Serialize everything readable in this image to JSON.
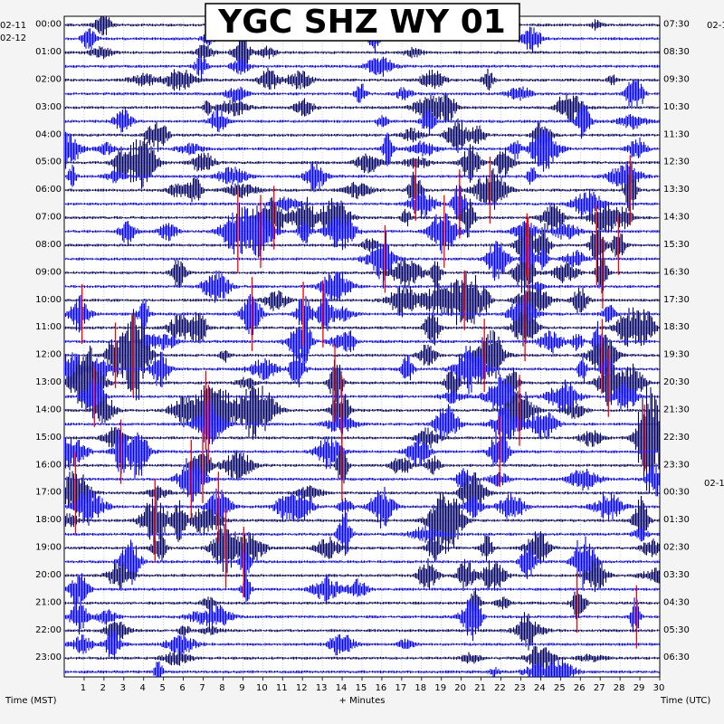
{
  "chart_data": {
    "type": "line",
    "title": "YGC SHZ WY 01",
    "xlabel": "+ Minutes",
    "left_axis_label": "Time (MST)",
    "right_axis_label": "Time (UTC)",
    "xlim": [
      0,
      30
    ],
    "x_ticks": [
      "1",
      "2",
      "3",
      "4",
      "5",
      "6",
      "7",
      "8",
      "9",
      "10",
      "11",
      "12",
      "13",
      "14",
      "15",
      "16",
      "17",
      "18",
      "19",
      "20",
      "21",
      "22",
      "23",
      "24",
      "25",
      "26",
      "27",
      "28",
      "29",
      "30"
    ],
    "left_date_labels": [
      "02-11",
      "02-12"
    ],
    "right_date_labels": [
      "02-1",
      "02-1"
    ],
    "left_hours": [
      "00:00",
      "01:00",
      "02:00",
      "03:00",
      "04:00",
      "05:00",
      "06:00",
      "07:00",
      "08:00",
      "09:00",
      "10:00",
      "11:00",
      "12:00",
      "13:00",
      "14:00",
      "15:00",
      "16:00",
      "17:00",
      "18:00",
      "19:00",
      "20:00",
      "21:00",
      "22:00",
      "23:00"
    ],
    "right_hours": [
      "07:30",
      "08:30",
      "09:30",
      "10:30",
      "11:30",
      "12:30",
      "13:30",
      "14:30",
      "15:30",
      "16:30",
      "17:30",
      "18:30",
      "19:30",
      "20:30",
      "21:30",
      "22:30",
      "23:30",
      "00:30",
      "01:30",
      "02:30",
      "03:30",
      "04:30",
      "05:30",
      "06:30"
    ],
    "trace_colors": [
      "#000066",
      "#0000ff"
    ],
    "clip_color": "#ff0000",
    "grid": true
  }
}
